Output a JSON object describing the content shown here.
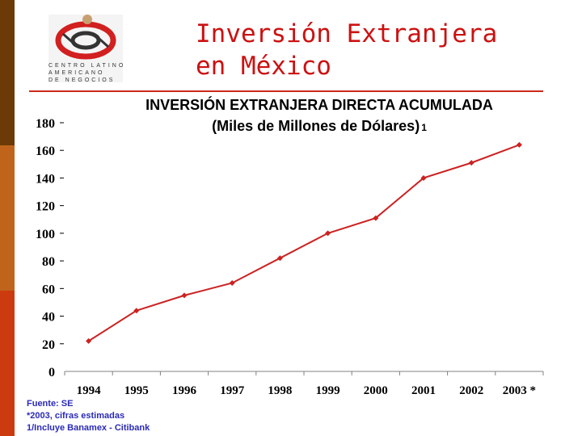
{
  "theme": {
    "sidebar_colors": [
      "#6b3a06",
      "#c0641c",
      "#cc3a10"
    ],
    "accent": "#cc1111",
    "line_color": "#cc2222",
    "footnote_color": "#2a2ab8"
  },
  "logo": {
    "line1": "CENTRO LATINO",
    "line2": "AMERICANO",
    "line3": "DE NEGOCIOS"
  },
  "slide_title": "Inversión Extranjera\nen México",
  "chart_data": {
    "type": "line",
    "title": "INVERSIÓN EXTRANJERA DIRECTA ACUMULADA",
    "subtitle": "(Miles de Millones de Dólares)",
    "subtitle_note": "1",
    "categories": [
      "1994",
      "1995",
      "1996",
      "1997",
      "1998",
      "1999",
      "2000",
      "2001",
      "2002",
      "2003 *"
    ],
    "values": [
      22,
      44,
      55,
      64,
      82,
      100,
      111,
      140,
      151,
      164
    ],
    "yticks": [
      0,
      20,
      40,
      60,
      80,
      100,
      120,
      140,
      160,
      180
    ],
    "ylim": [
      0,
      180
    ],
    "grid": false,
    "marker": "diamond"
  },
  "footnotes": [
    "Fuente: SE",
    "*2003, cifras estimadas",
    "1/Incluye Banamex - Citibank"
  ]
}
